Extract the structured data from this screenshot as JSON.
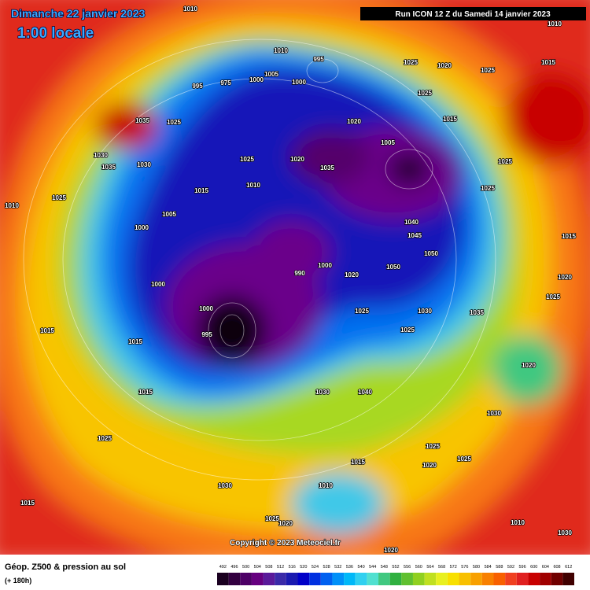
{
  "header": {
    "title": "Dimanche 22 janvier 2023",
    "time": "1:00 locale",
    "run": "Run ICON 12 Z du Samedi 14 janvier 2023"
  },
  "footer": {
    "product": "Géop. Z500 & pression au sol",
    "lead": "(+ 180h)",
    "copyright": "Copyright © 2023 Meteociel.fr"
  },
  "legend": {
    "ticks": [
      492,
      496,
      500,
      504,
      508,
      512,
      516,
      520,
      524,
      528,
      532,
      536,
      540,
      544,
      548,
      552,
      556,
      560,
      564,
      568,
      572,
      576,
      580,
      584,
      588,
      592,
      596,
      600,
      604,
      608,
      612
    ],
    "colors": [
      "#1a0020",
      "#330040",
      "#4d0066",
      "#660080",
      "#5a1a9a",
      "#3a2aa8",
      "#1a1ab0",
      "#0000c8",
      "#0030e0",
      "#0060f0",
      "#0090f8",
      "#00b8f8",
      "#30d0f0",
      "#50e0d0",
      "#40c880",
      "#30b040",
      "#60c030",
      "#90d020",
      "#c0e020",
      "#e8f020",
      "#f8e000",
      "#f8c000",
      "#f8a000",
      "#f88000",
      "#f86000",
      "#f04020",
      "#e02020",
      "#c80000",
      "#a00000",
      "#700000",
      "#400000"
    ]
  },
  "isobars": [
    "1010",
    "1010",
    "1010",
    "995",
    "1005",
    "1000",
    "1000",
    "975",
    "995",
    "1025",
    "1020",
    "1025",
    "1015",
    "1035",
    "1025",
    "1025",
    "1015",
    "1020",
    "1005",
    "1030",
    "1035",
    "1030",
    "1025",
    "1020",
    "1035",
    "1010",
    "1010",
    "1025",
    "1015",
    "1000",
    "1005",
    "1040",
    "1045",
    "1050",
    "1050",
    "990",
    "1000",
    "1020",
    "1000",
    "1000",
    "995",
    "1025",
    "1030",
    "1025",
    "1015",
    "1015",
    "1015",
    "1030",
    "1040",
    "1020",
    "1030",
    "1025",
    "1015",
    "1020",
    "1025",
    "1010",
    "1025",
    "1015",
    "1030",
    "1020",
    "1010",
    "1020",
    "1030",
    "1025",
    "1015",
    "1020",
    "1025",
    "1035",
    "1025",
    "1025"
  ]
}
